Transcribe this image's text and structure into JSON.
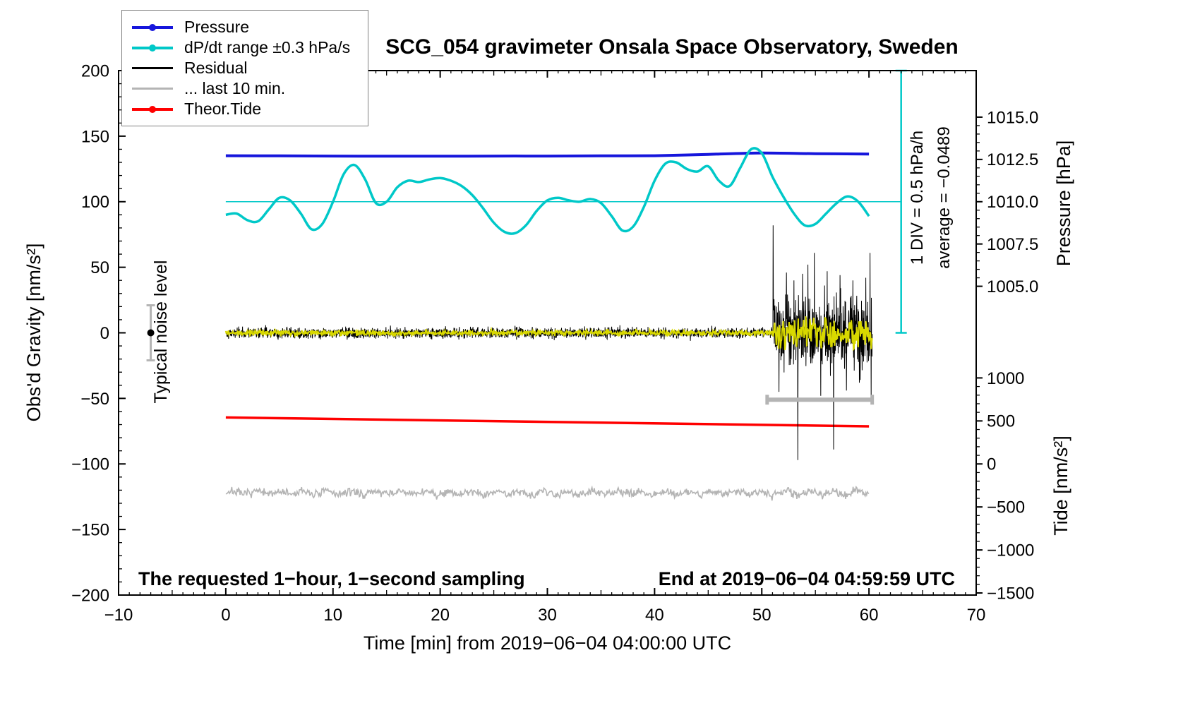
{
  "title": "SCG_054 gravimeter Onsala Space Observatory, Sweden",
  "legend": {
    "items": [
      {
        "label": "Pressure",
        "color": "#1616dc",
        "dot": true
      },
      {
        "label": "dP/dt range ±0.3 hPa/s",
        "color": "#00c8c8",
        "dot": true
      },
      {
        "label": "Residual",
        "color": "#000000",
        "dot": false
      },
      {
        "label": "... last 10 min.",
        "color": "#b4b4b4",
        "dot": false
      },
      {
        "label": "Theor.Tide",
        "color": "#ff0000",
        "dot": true
      }
    ]
  },
  "annotations": {
    "noise_label": "Typical noise level",
    "div_label": "1 DIV = 0.5 hPa/h",
    "average_label": "average = −0.0489",
    "bottom_left": "The requested 1−hour, 1−second sampling",
    "bottom_right": "End at 2019−06−04 04:59:59 UTC"
  },
  "chart_data": {
    "type": "line",
    "title": "SCG_054 gravimeter Onsala Space Observatory, Sweden",
    "xlabel": "Time [min] from 2019−06−04 04:00:00 UTC",
    "ylabel": "Obs'd Gravity [nm/s²]",
    "y2label": "Pressure [hPa]",
    "y3label": "Tide [nm/s²]",
    "xlim": [
      -10,
      70
    ],
    "ylim": [
      -200,
      200
    ],
    "x_ticks": [
      -10,
      0,
      10,
      20,
      30,
      40,
      50,
      60,
      70
    ],
    "y_ticks": [
      -200,
      -150,
      -100,
      -50,
      0,
      50,
      100,
      150,
      200
    ],
    "grid": false,
    "legend_position": "top-left",
    "colors": {
      "pressure": "#1616dc",
      "dpdt": "#00c8c8",
      "residual": "#000000",
      "last10": "#b4b4b4",
      "tide": "#ff0000",
      "filtered": "#d8d800",
      "frame": "#000000"
    },
    "pressure_axis": {
      "ticks": [
        1015.0,
        1012.5,
        1010.0,
        1007.5,
        1005.0
      ],
      "labels": [
        "1015.0",
        "1012.5",
        "1010.0",
        "1007.5",
        "1005.0"
      ],
      "minor_step": 0.5,
      "minor_range": [
        1005,
        1015
      ],
      "gravity_at_1010": 100,
      "gravity_per_hpa": 12.9
    },
    "tide_axis": {
      "ticks": [
        1000,
        500,
        0,
        -500,
        -1000,
        -1500
      ],
      "minor_step": 100,
      "minor_range": [
        -1500,
        1000
      ],
      "gravity_at_0": -100,
      "gravity_per_unit": 0.0656
    },
    "series": {
      "pressure": {
        "x_start": 0,
        "x_step": 5,
        "values_hpa": [
          1012.72,
          1012.71,
          1012.7,
          1012.69,
          1012.69,
          1012.7,
          1012.7,
          1012.71,
          1012.72,
          1012.8,
          1012.88,
          1012.84,
          1012.82
        ]
      },
      "dpdt": {
        "x_start": 0,
        "x_step": 1,
        "ref_gravity": 100,
        "ref_xrange": [
          0,
          63
        ],
        "values_gravity": [
          90,
          91,
          86,
          85,
          94,
          103,
          101,
          91,
          79,
          83,
          100,
          121,
          128,
          117,
          99,
          100,
          111,
          116,
          115,
          117,
          118,
          116,
          112,
          105,
          95,
          84,
          77,
          76,
          82,
          93,
          101,
          103,
          101,
          100,
          102,
          99,
          89,
          78,
          81,
          96,
          116,
          129,
          130,
          125,
          123,
          127,
          116,
          112,
          126,
          140,
          137,
          119,
          104,
          91,
          82,
          83,
          91,
          99,
          104,
          100,
          89
        ]
      },
      "tide": {
        "x": [
          0,
          60
        ],
        "values_nms2": [
          540,
          437
        ]
      },
      "residual": {
        "xrange": [
          0,
          60.3
        ],
        "dx": 0.02,
        "sigma": 2.0,
        "seed": 1337,
        "burst": {
          "xrange": [
            51,
            60.3
          ],
          "sigma": 13
        },
        "spikes": [
          [
            51.05,
            82
          ],
          [
            51.6,
            -45
          ],
          [
            52.3,
            46
          ],
          [
            53.0,
            40
          ],
          [
            53.35,
            -97
          ],
          [
            53.8,
            45
          ],
          [
            54.3,
            52
          ],
          [
            54.9,
            61
          ],
          [
            55.5,
            -48
          ],
          [
            56.1,
            47
          ],
          [
            56.7,
            -89
          ],
          [
            57.3,
            44
          ],
          [
            57.9,
            -44
          ],
          [
            58.5,
            40
          ],
          [
            59.1,
            -38
          ],
          [
            59.7,
            42
          ],
          [
            60.1,
            61
          ],
          [
            60.2,
            -50
          ]
        ]
      },
      "filtered": {
        "xrange": [
          0,
          60.3
        ],
        "dx": 0.05,
        "sigma": 1.0,
        "seed": 2024,
        "burst": {
          "xrange": [
            51,
            60.3
          ],
          "sigma": 5.5
        }
      },
      "last10_trace": {
        "xrange": [
          0,
          60
        ],
        "dx": 0.07,
        "sigma": 1.6,
        "mean": -122,
        "seed": 7,
        "wiggle": {
          "freq": 2.8,
          "amp": 1.2
        }
      },
      "last10_bar": {
        "gravity": -51,
        "xrange": [
          50.5,
          60.3
        ]
      },
      "noise_marker": {
        "x": -7,
        "gravity": 0,
        "error": 21
      },
      "scalebar": {
        "x": 63,
        "gravity_range": [
          0,
          200
        ]
      }
    }
  }
}
